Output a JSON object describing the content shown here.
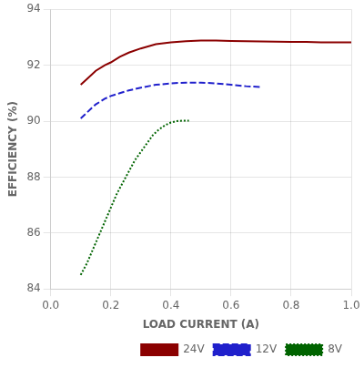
{
  "chart_data": {
    "type": "line",
    "xlabel": "LOAD CURRENT (A)",
    "ylabel": "EFFICIENCY (%)",
    "xlim": [
      0,
      1.0
    ],
    "ylim": [
      84,
      94
    ],
    "xticks": [
      {
        "value": 0,
        "label": "0.0"
      },
      0.2,
      0.4,
      0.6,
      0.8,
      {
        "value": 1.0,
        "label": "1.0"
      }
    ],
    "yticks": [
      84,
      86,
      88,
      90,
      92,
      94
    ],
    "grid": true,
    "legend": "lower right",
    "series": [
      {
        "name": "24V",
        "color": "#8B0000",
        "line_style": "solid",
        "x": [
          0.1,
          0.12,
          0.15,
          0.18,
          0.2,
          0.23,
          0.26,
          0.3,
          0.35,
          0.4,
          0.45,
          0.5,
          0.55,
          0.6,
          0.65,
          0.7,
          0.75,
          0.8,
          0.85,
          0.9,
          0.95,
          1.0
        ],
        "values": [
          91.3,
          91.5,
          91.8,
          92.0,
          92.1,
          92.3,
          92.45,
          92.6,
          92.75,
          92.82,
          92.86,
          92.88,
          92.88,
          92.87,
          92.86,
          92.85,
          92.84,
          92.83,
          92.83,
          92.82,
          92.82,
          92.82
        ]
      },
      {
        "name": "12V",
        "color": "#2020CC",
        "line_style": "dashed",
        "x": [
          0.1,
          0.12,
          0.15,
          0.18,
          0.2,
          0.23,
          0.26,
          0.3,
          0.35,
          0.4,
          0.45,
          0.5,
          0.55,
          0.6,
          0.65,
          0.7
        ],
        "values": [
          90.1,
          90.3,
          90.6,
          90.8,
          90.9,
          91.0,
          91.1,
          91.2,
          91.3,
          91.35,
          91.38,
          91.38,
          91.35,
          91.3,
          91.25,
          91.22
        ]
      },
      {
        "name": "8V",
        "color": "#006400",
        "line_style": "dotted",
        "x": [
          0.1,
          0.12,
          0.14,
          0.16,
          0.18,
          0.2,
          0.22,
          0.24,
          0.26,
          0.28,
          0.3,
          0.32,
          0.34,
          0.36,
          0.38,
          0.4,
          0.42,
          0.44,
          0.46
        ],
        "values": [
          84.5,
          84.9,
          85.4,
          85.9,
          86.4,
          86.9,
          87.4,
          87.8,
          88.2,
          88.6,
          88.9,
          89.2,
          89.5,
          89.7,
          89.85,
          89.95,
          90.0,
          90.02,
          90.02
        ]
      }
    ]
  }
}
